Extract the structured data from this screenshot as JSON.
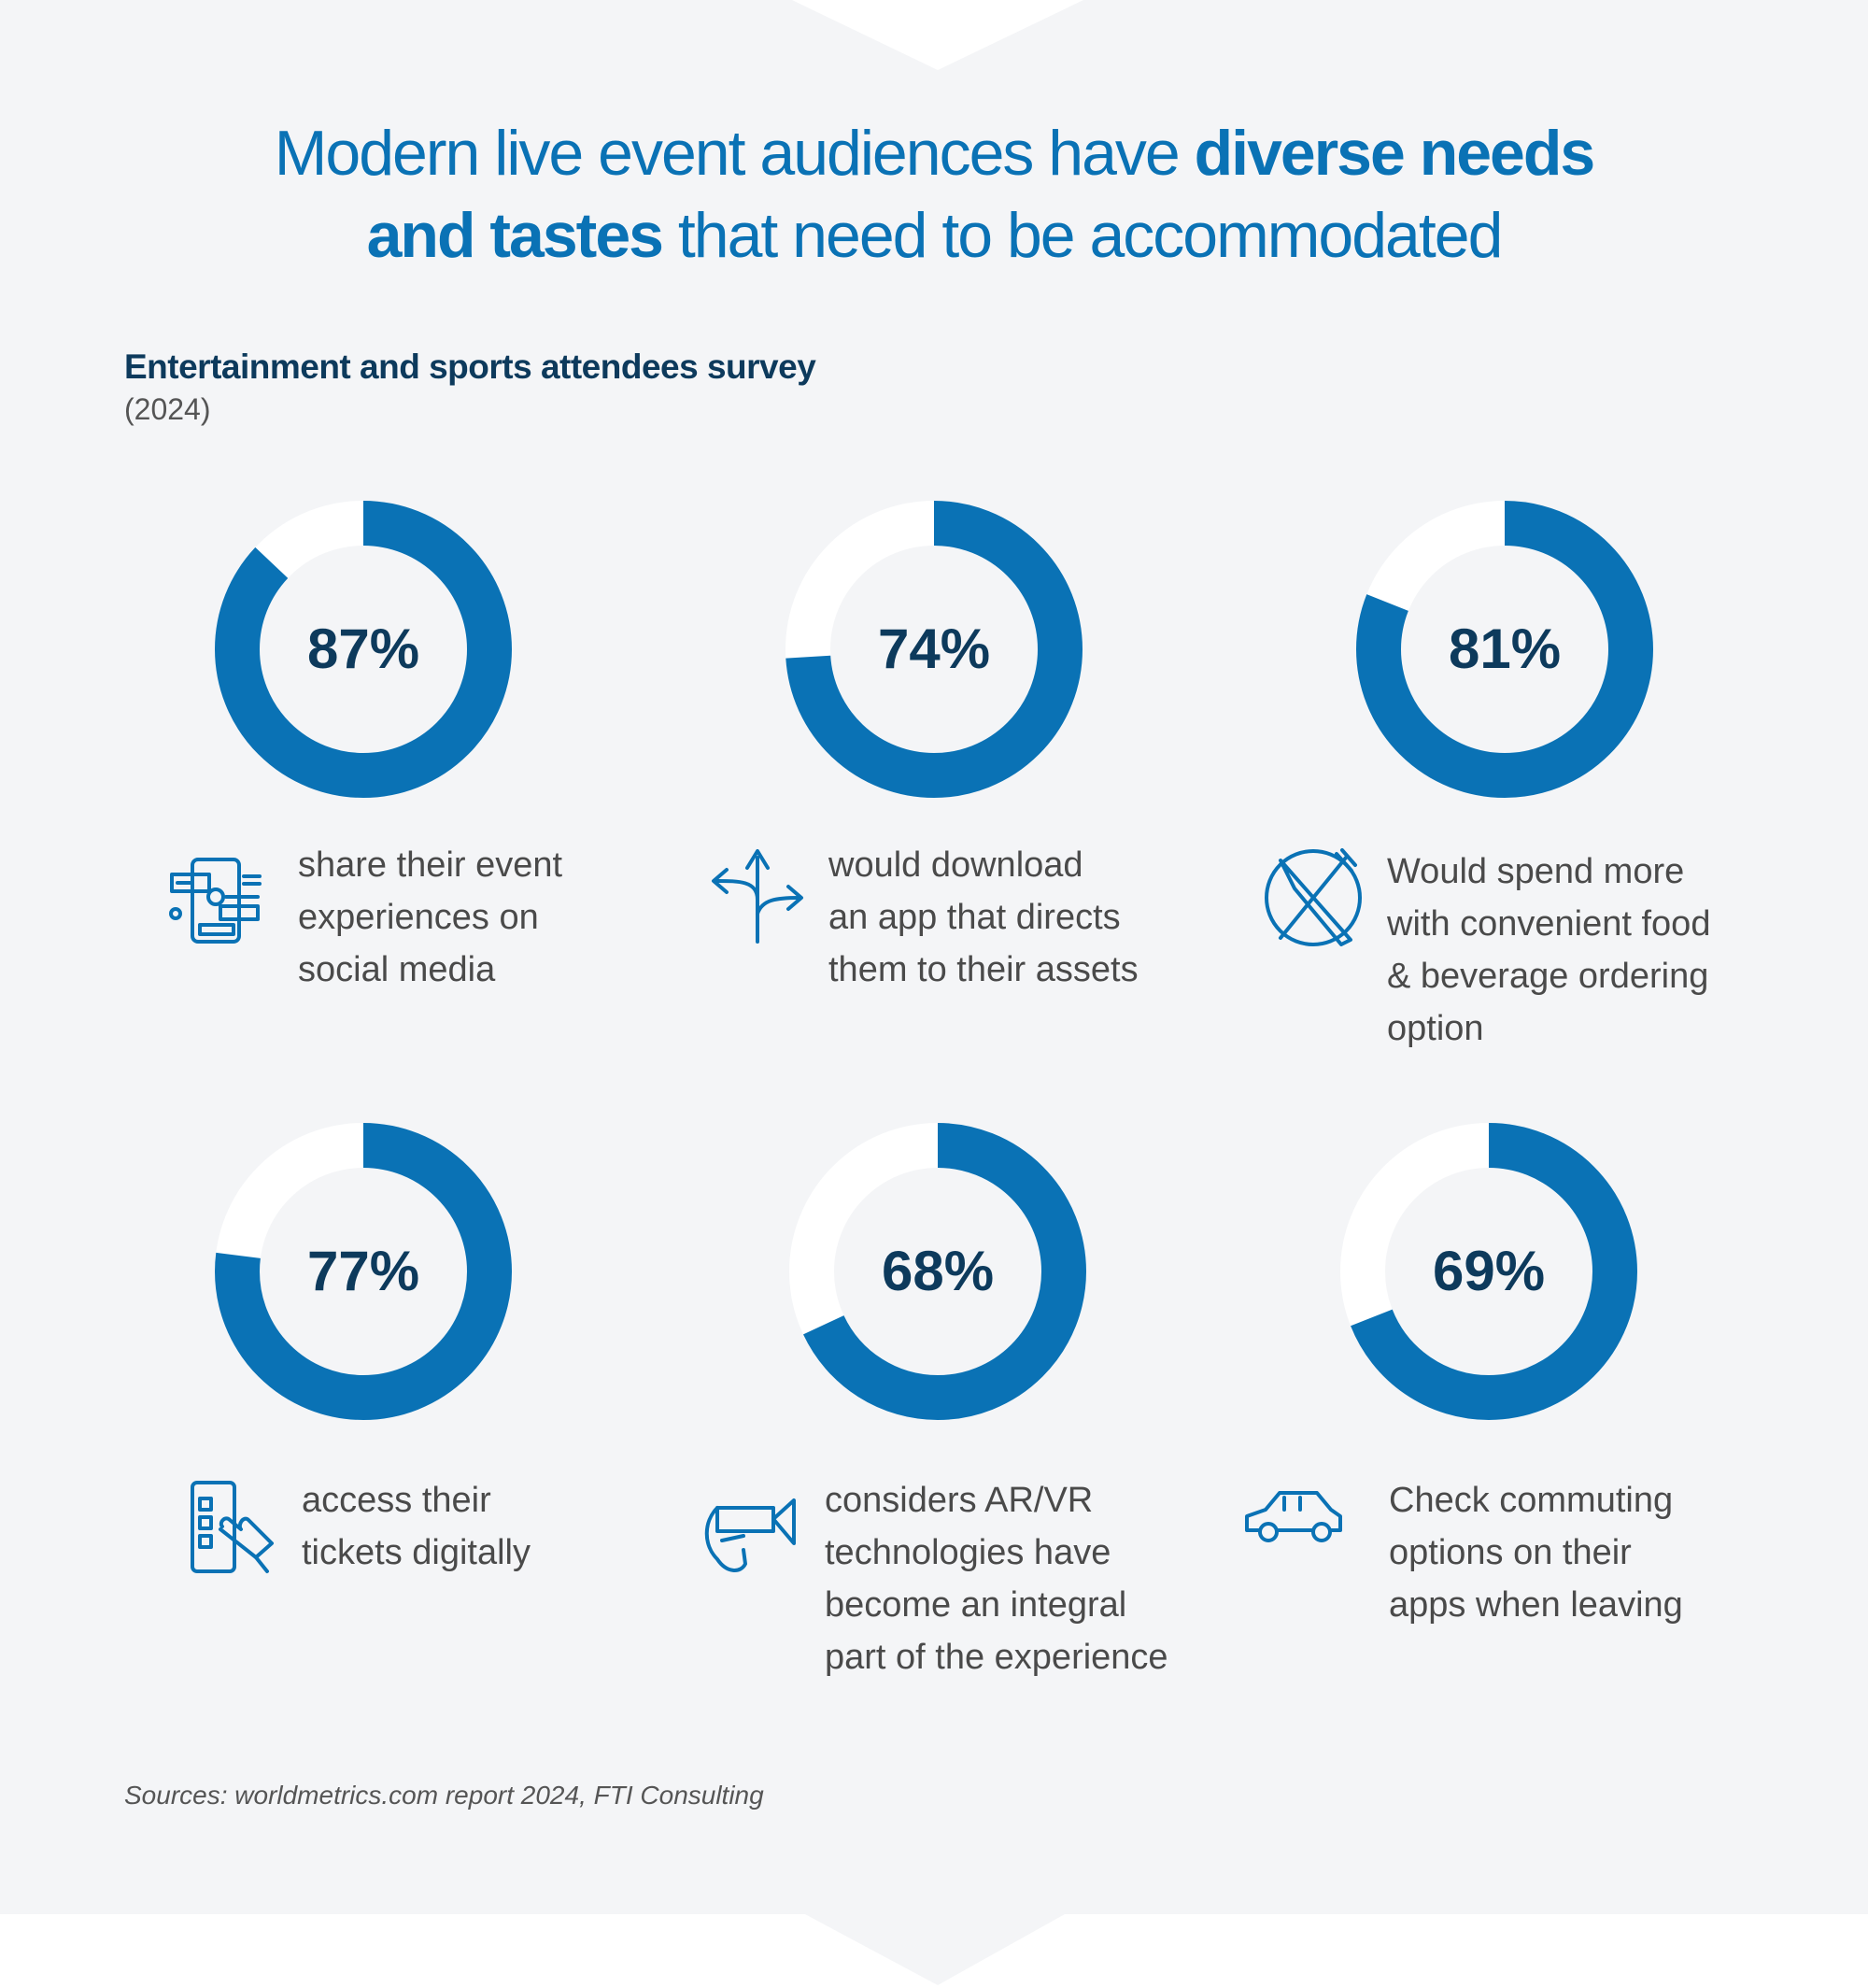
{
  "header": {
    "title_part1": "Modern live event audiences have ",
    "title_bold1": "diverse needs",
    "title_bold2": "and tastes",
    "title_part2": " that need to be accommodated",
    "subtitle": "Entertainment and sports attendees survey",
    "year": "(2024)"
  },
  "colors": {
    "accent": "#0a72b5",
    "track": "#ffffff",
    "value_text": "#0d3a5c",
    "background": "#f4f5f7"
  },
  "chart_data": {
    "type": "pie",
    "variant": "donut",
    "title": "Entertainment and sports attendees survey",
    "subtitle": "(2024)",
    "items": [
      {
        "value": 87,
        "label_text": "87%",
        "icon": "social-media-icon",
        "lines": [
          "share their event",
          "experiences on",
          "social media"
        ]
      },
      {
        "value": 74,
        "label_text": "74%",
        "icon": "direction-arrows-icon",
        "lines": [
          "would download",
          "an app that directs",
          "them to their assets"
        ]
      },
      {
        "value": 81,
        "label_text": "81%",
        "icon": "knife-fork-icon",
        "lines": [
          "Would spend more",
          "with convenient food",
          "& beverage ordering",
          "option"
        ]
      },
      {
        "value": 77,
        "label_text": "77%",
        "icon": "mobile-ticket-icon",
        "lines": [
          "access their",
          "tickets digitally"
        ]
      },
      {
        "value": 68,
        "label_text": "68%",
        "icon": "vr-headset-icon",
        "lines": [
          "considers AR/VR",
          "technologies have",
          "become an integral",
          "part of the experience"
        ]
      },
      {
        "value": 69,
        "label_text": "69%",
        "icon": "car-icon",
        "lines": [
          "Check commuting",
          "options on their",
          "apps when leaving"
        ]
      }
    ]
  },
  "footer": {
    "sources": "Sources: worldmetrics.com report 2024, FTI Consulting"
  }
}
